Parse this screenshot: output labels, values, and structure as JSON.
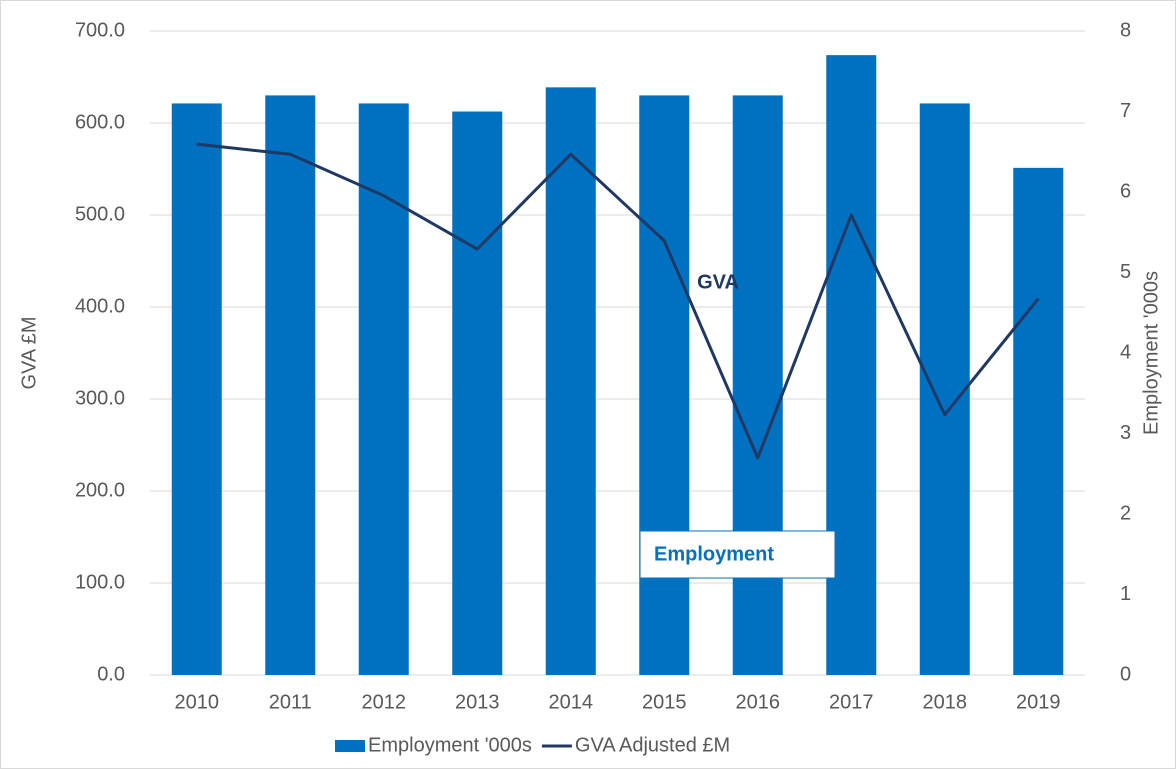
{
  "chart_data": {
    "type": "combo",
    "categories": [
      "2010",
      "2011",
      "2012",
      "2013",
      "2014",
      "2015",
      "2016",
      "2017",
      "2018",
      "2019"
    ],
    "series": [
      {
        "name": "Employment '000s",
        "type": "bar",
        "axis": "y2",
        "color": "#0070c0",
        "values": [
          7.1,
          7.2,
          7.1,
          7.0,
          7.3,
          7.2,
          7.2,
          7.7,
          7.1,
          6.3
        ]
      },
      {
        "name": "GVA Adjusted £M",
        "type": "line",
        "axis": "y",
        "color": "#1f3864",
        "values": [
          577,
          566,
          521,
          463,
          566,
          472,
          236,
          500,
          283,
          409
        ]
      }
    ],
    "ylabel": "GVA £M",
    "y2label": "Employment  '000s",
    "ylim": [
      0,
      700
    ],
    "yticks": [
      {
        "value": 0,
        "label": "0.0"
      },
      {
        "value": 100,
        "label": "100.0"
      },
      {
        "value": 200,
        "label": "200.0"
      },
      {
        "value": 300,
        "label": "300.0"
      },
      {
        "value": 400,
        "label": "400.0"
      },
      {
        "value": 500,
        "label": "500.0"
      },
      {
        "value": 600,
        "label": "600.0"
      },
      {
        "value": 700,
        "label": "700.0"
      }
    ],
    "y2lim": [
      0,
      8
    ],
    "y2ticks": [
      0,
      1,
      2,
      3,
      4,
      5,
      6,
      7,
      8
    ],
    "grid": true,
    "legend": "bottom",
    "annotations": [
      "GVA",
      "Employment"
    ]
  }
}
